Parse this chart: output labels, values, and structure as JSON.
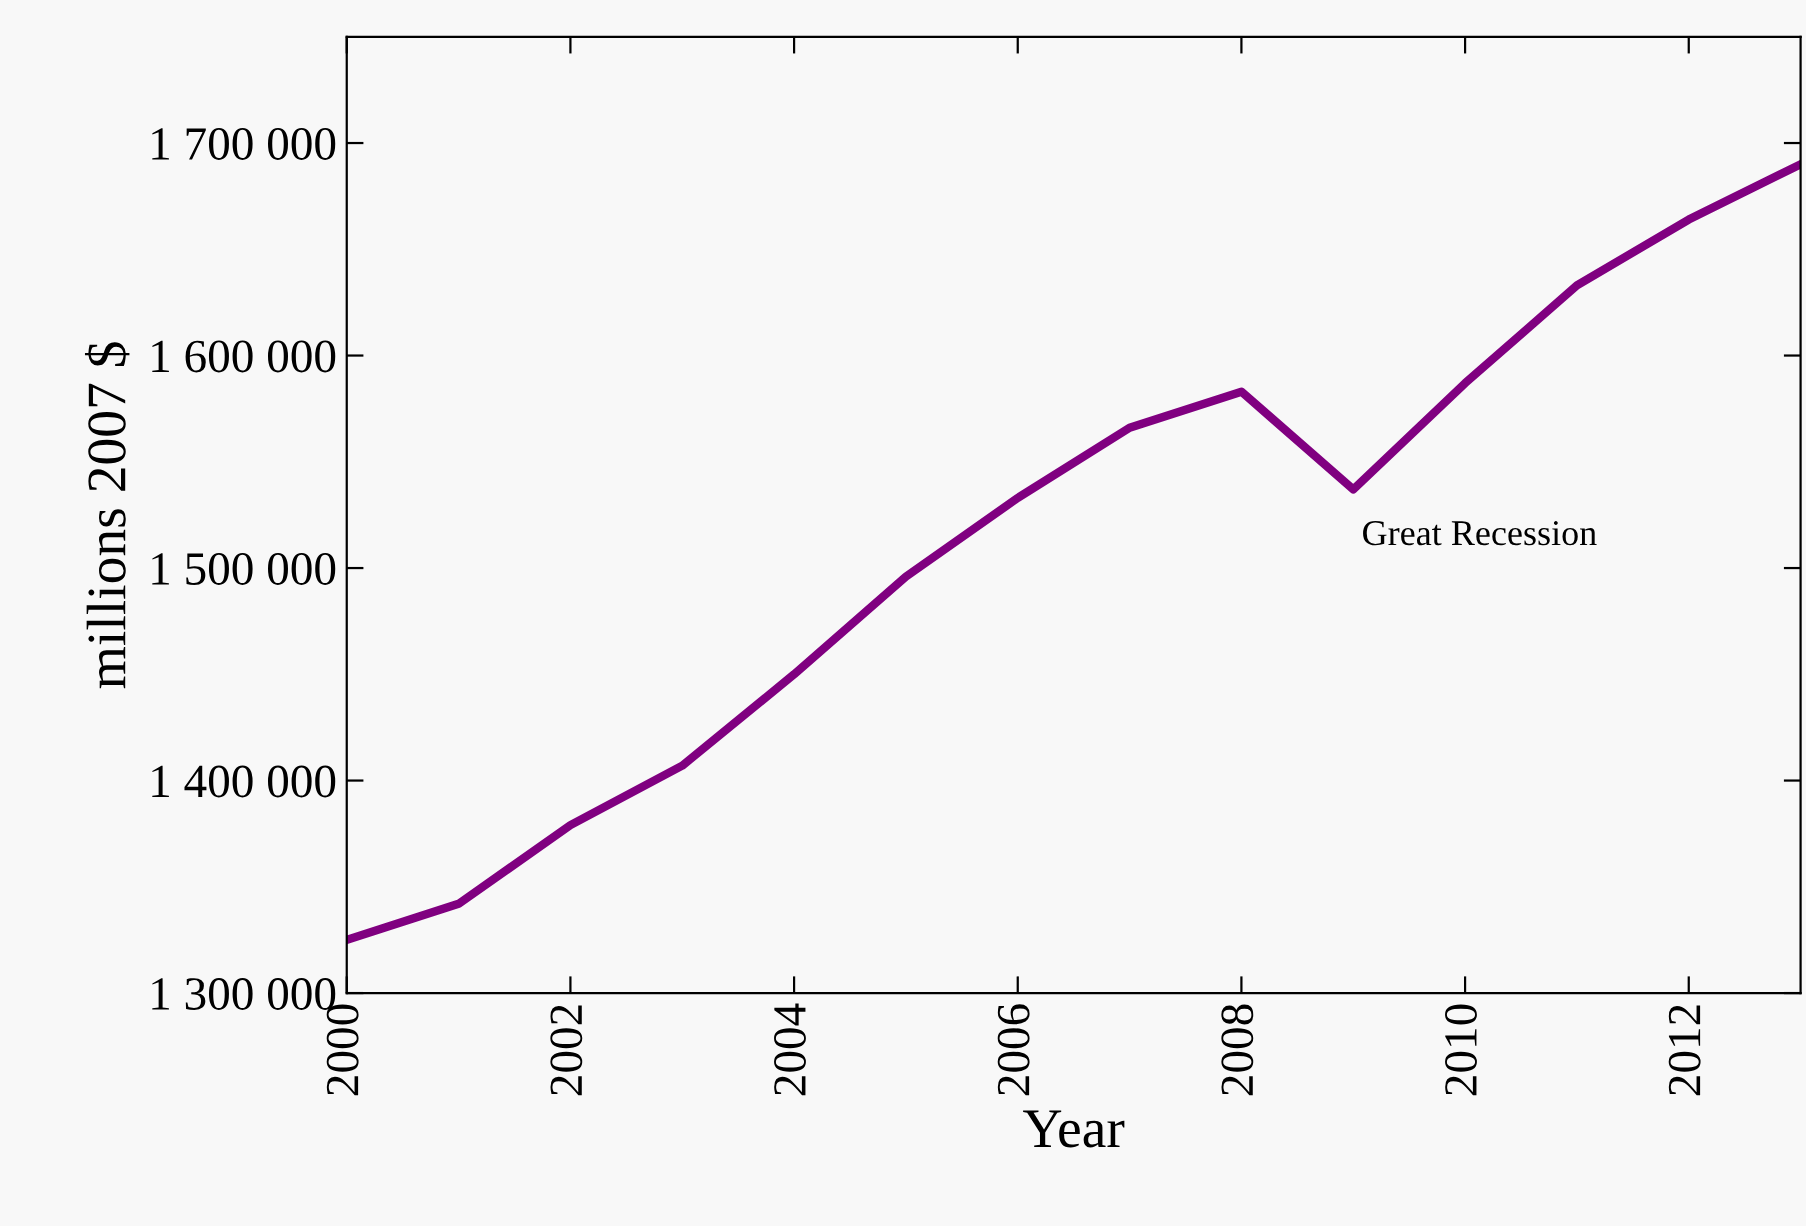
{
  "chart_data": {
    "type": "line",
    "xlabel": "Year",
    "ylabel": "millions 2007 $",
    "x": [
      2000,
      2001,
      2002,
      2003,
      2004,
      2005,
      2006,
      2007,
      2008,
      2009,
      2010,
      2011,
      2012,
      2013
    ],
    "series": [
      {
        "color": "#800080",
        "values": [
          1325000,
          1342000,
          1379000,
          1407000,
          1450000,
          1496000,
          1533000,
          1566000,
          1583000,
          1537000,
          1587000,
          1633000,
          1664000,
          1690000
        ]
      }
    ],
    "xlim": [
      2000,
      2013
    ],
    "xticks": [
      2000,
      2002,
      2004,
      2006,
      2008,
      2010,
      2012
    ],
    "ylim": [
      1300000,
      1750000
    ],
    "yticks": [
      {
        "value": 1300000,
        "label": "1 300 000"
      },
      {
        "value": 1400000,
        "label": "1 400 000"
      },
      {
        "value": 1500000,
        "label": "1 500 000"
      },
      {
        "value": 1600000,
        "label": "1 600 000"
      },
      {
        "value": 1700000,
        "label": "1 700 000"
      }
    ],
    "annotations": [
      {
        "text": "Great Recession",
        "x": 2009,
        "y": 1537000
      }
    ],
    "grid": false,
    "legend": false,
    "marker": "none",
    "line_style": "solid"
  }
}
